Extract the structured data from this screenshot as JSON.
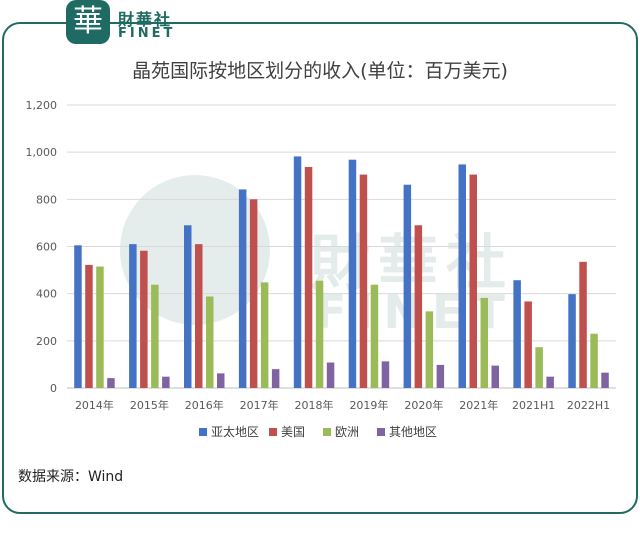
{
  "logo": {
    "badge": "華",
    "name_cn": "財華社",
    "name_en": "FINET"
  },
  "watermark": {
    "name_cn": "財華社",
    "name_en": "FINET"
  },
  "source": "数据来源：Wind",
  "colors": {
    "brand": "#1f6b63",
    "asia_pacific": "#4472c4",
    "usa": "#c0504d",
    "europe": "#9bbb59",
    "other": "#8064a2"
  },
  "chart_data": {
    "type": "bar",
    "title": "晶苑国际按地区划分的收入(单位：百万美元)",
    "categories": [
      "2014年",
      "2015年",
      "2016年",
      "2017年",
      "2018年",
      "2019年",
      "2020年",
      "2021年",
      "2021H1",
      "2022H1"
    ],
    "series": [
      {
        "name": "亚太地区",
        "color": "#4472c4",
        "values": [
          605,
          610,
          690,
          842,
          982,
          968,
          862,
          948,
          457,
          398
        ]
      },
      {
        "name": "美国",
        "color": "#c0504d",
        "values": [
          522,
          582,
          610,
          800,
          937,
          905,
          690,
          905,
          367,
          535
        ]
      },
      {
        "name": "欧洲",
        "color": "#9bbb59",
        "values": [
          515,
          438,
          388,
          448,
          455,
          438,
          325,
          382,
          173,
          230
        ]
      },
      {
        "name": "其他地区",
        "color": "#8064a2",
        "values": [
          42,
          48,
          62,
          80,
          108,
          113,
          98,
          95,
          48,
          65
        ]
      }
    ],
    "yticks": [
      "0",
      "200",
      "400",
      "600",
      "800",
      "1,000",
      "1,200"
    ],
    "ylim": [
      0,
      1200
    ],
    "grid": true,
    "legend_position": "bottom"
  }
}
